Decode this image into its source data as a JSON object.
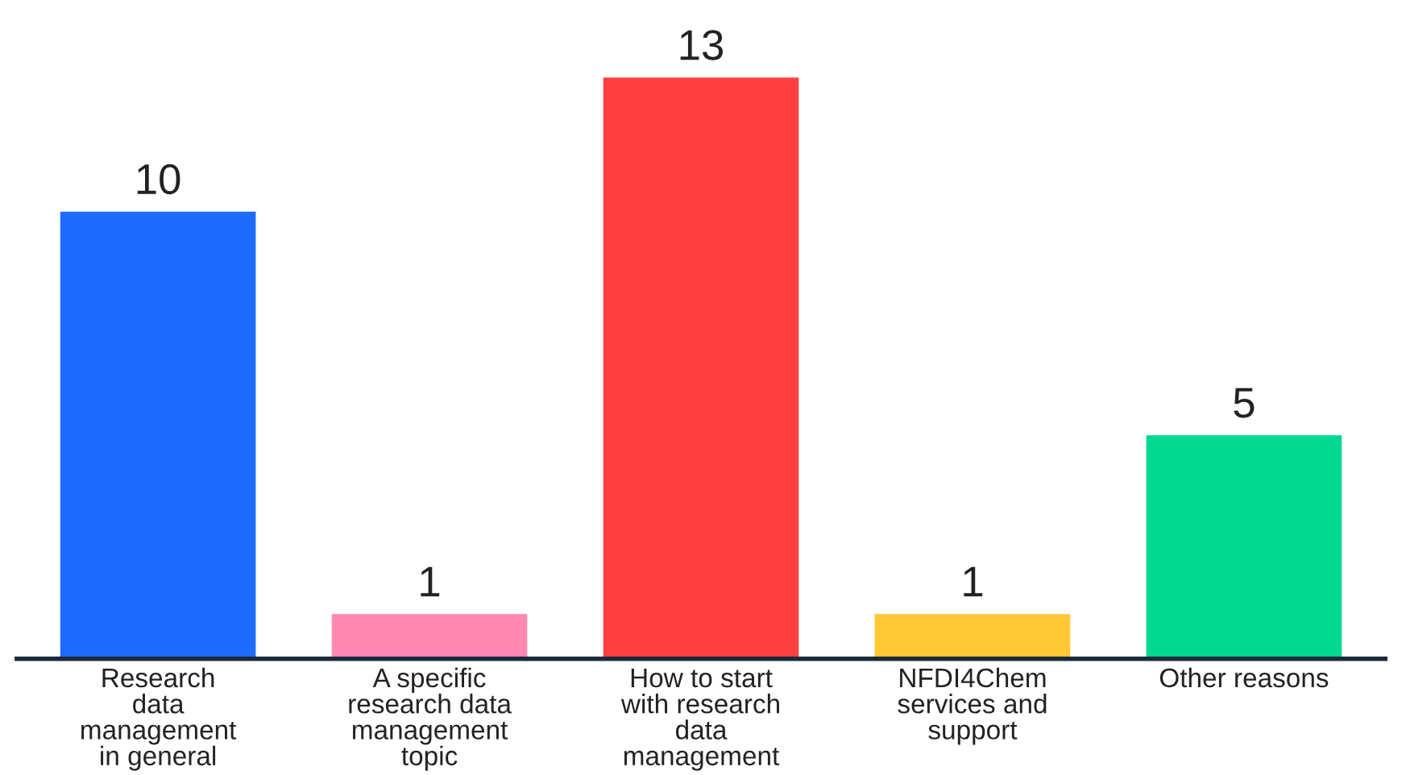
{
  "chart_data": {
    "type": "bar",
    "categories": [
      "Research\ndata\nmanagement\nin general",
      "A specific\nresearch data\nmanagement\ntopic",
      "How to start\nwith research\ndata\nmanagement",
      "NFDI4Chem\nservices and\nsupport",
      "Other reasons"
    ],
    "values": [
      10,
      1,
      13,
      1,
      5
    ],
    "colors": [
      "#1f6bff",
      "#ff87b2",
      "#ff4040",
      "#ffc733",
      "#00d98f"
    ],
    "data_labels": true,
    "grid": false,
    "legend": false,
    "tick_labels": "x"
  }
}
